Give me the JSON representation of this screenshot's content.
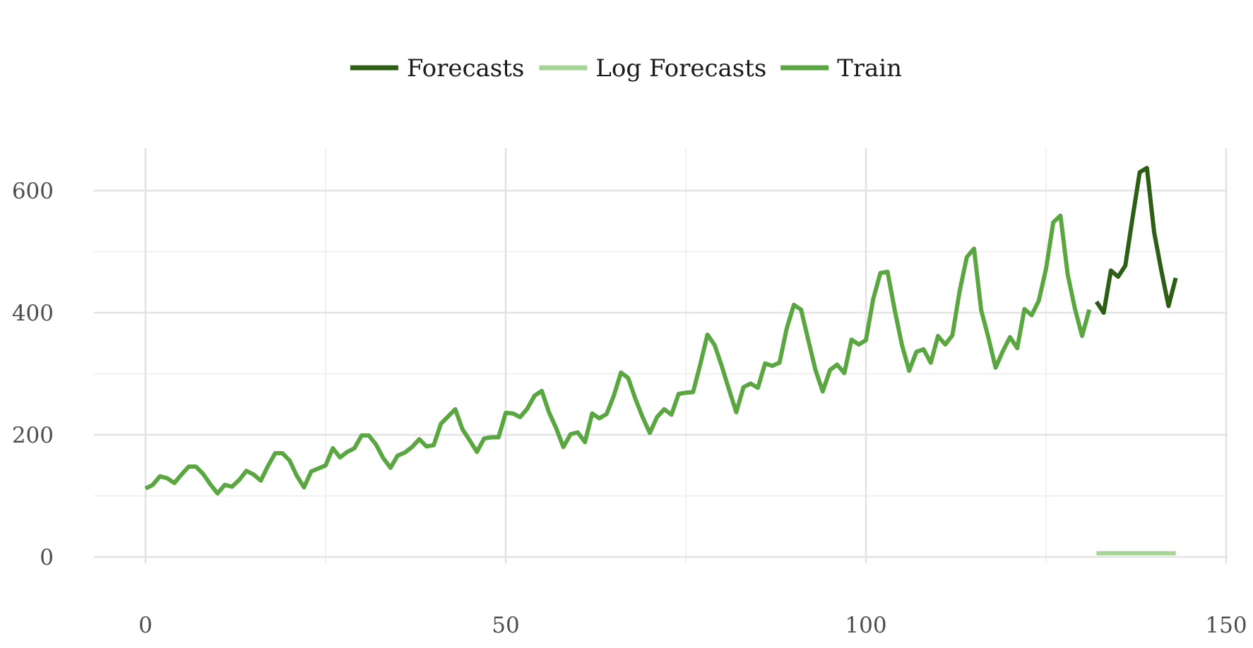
{
  "chart_data": {
    "type": "line",
    "title": "",
    "xlabel": "",
    "ylabel": "",
    "xlim": [
      0,
      150
    ],
    "ylim": [
      0,
      660
    ],
    "x_ticks": [
      0,
      50,
      100,
      150
    ],
    "x_tick_labels": [
      "0",
      "50",
      "100",
      "150"
    ],
    "y_ticks": [
      0,
      200,
      400,
      600
    ],
    "y_tick_labels": [
      "0",
      "200",
      "400",
      "600"
    ],
    "grid": true,
    "legend_position": "top",
    "series": [
      {
        "name": "Forecasts",
        "color": "#2c5e13",
        "x_start": 132,
        "values": [
          418,
          400,
          469,
          459,
          477,
          555,
          630,
          637,
          532,
          469,
          411,
          457
        ]
      },
      {
        "name": "Log Forecasts",
        "color": "#a6d495",
        "x_start": 132,
        "values": [
          6.04,
          6.05,
          6.06,
          6.07,
          6.08,
          6.09,
          6.1,
          6.11,
          6.1,
          6.09,
          6.08,
          6.07
        ]
      },
      {
        "name": "Train",
        "color": "#5aa641",
        "x_start": 0,
        "values": [
          112,
          118,
          132,
          129,
          121,
          135,
          148,
          148,
          136,
          119,
          104,
          118,
          115,
          126,
          141,
          135,
          125,
          149,
          170,
          170,
          158,
          133,
          114,
          140,
          145,
          150,
          178,
          163,
          172,
          178,
          199,
          199,
          184,
          162,
          146,
          166,
          171,
          180,
          193,
          181,
          183,
          218,
          230,
          242,
          209,
          191,
          172,
          194,
          196,
          196,
          236,
          235,
          229,
          243,
          264,
          272,
          237,
          211,
          180,
          201,
          204,
          188,
          235,
          227,
          234,
          264,
          302,
          293,
          259,
          229,
          203,
          229,
          242,
          233,
          267,
          269,
          270,
          315,
          364,
          347,
          312,
          274,
          237,
          278,
          284,
          277,
          317,
          313,
          318,
          374,
          413,
          405,
          355,
          306,
          271,
          306,
          315,
          301,
          356,
          348,
          355,
          422,
          465,
          467,
          404,
          347,
          305,
          336,
          340,
          318,
          362,
          348,
          363,
          435,
          491,
          505,
          404,
          359,
          310,
          337,
          360,
          342,
          406,
          396,
          420,
          472,
          548,
          559,
          463,
          407,
          362,
          405
        ]
      }
    ]
  }
}
